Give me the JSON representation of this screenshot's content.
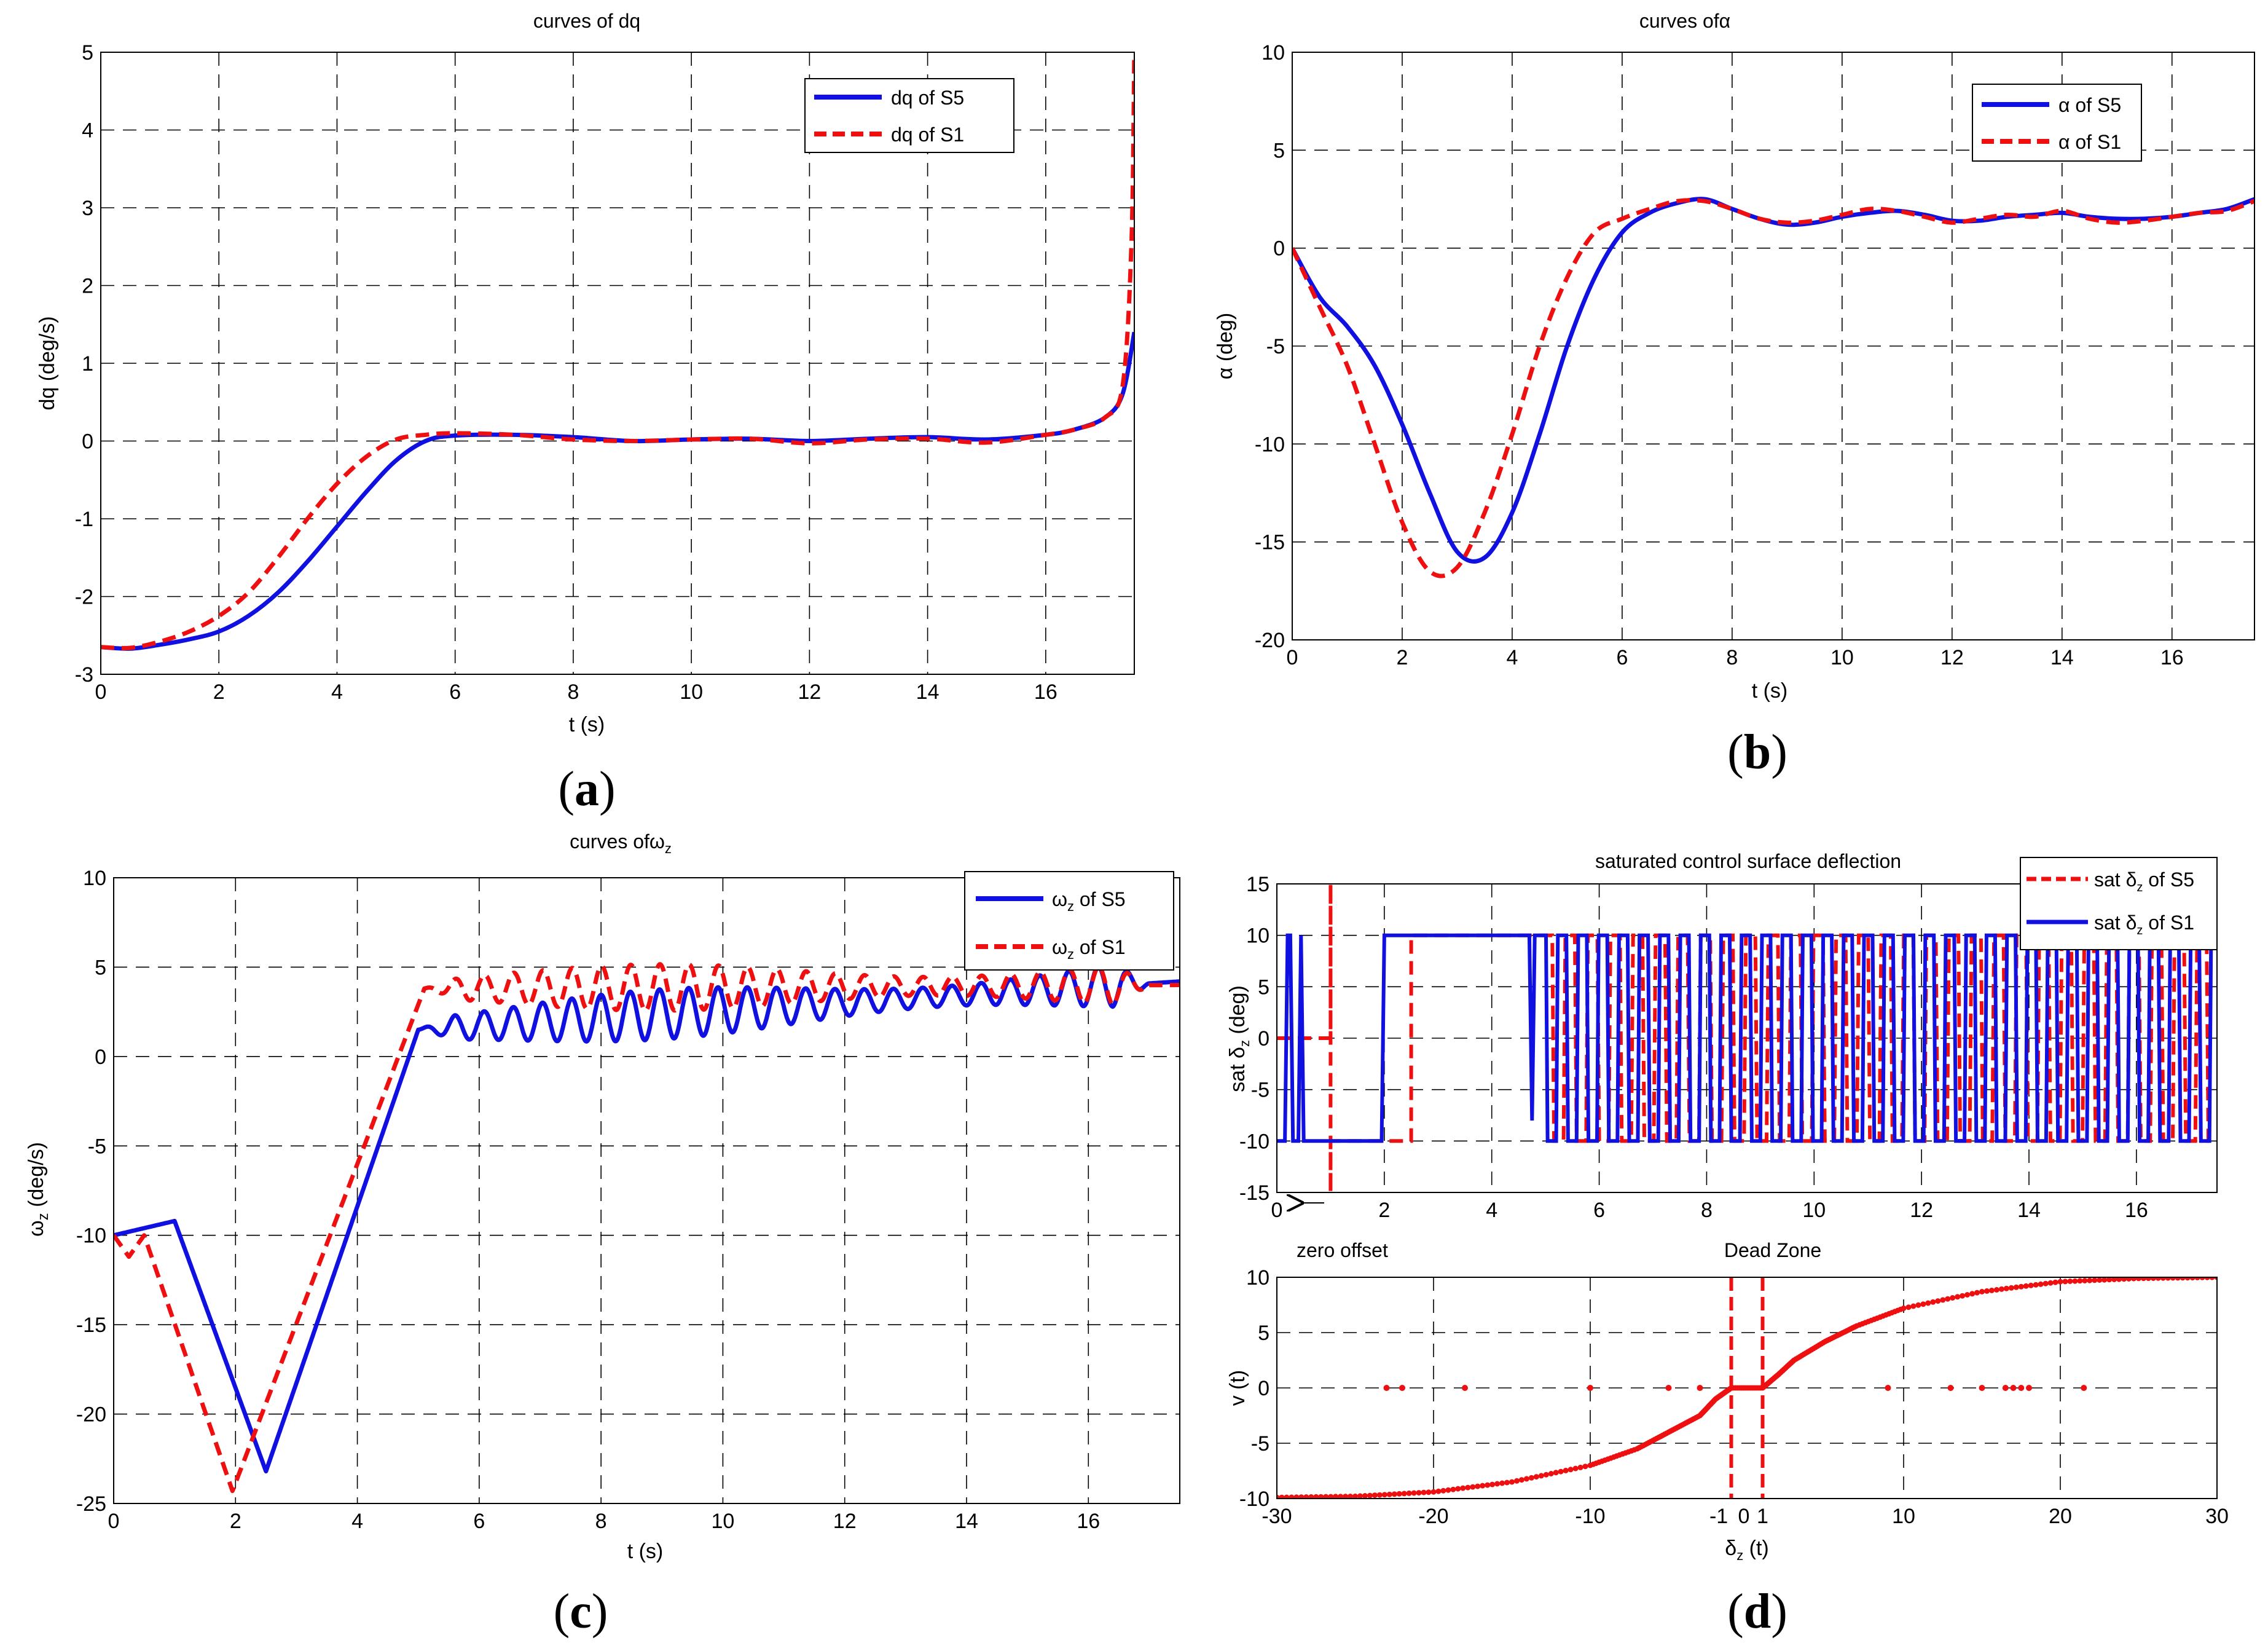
{
  "colors": {
    "s5": "#1010e0",
    "s1": "#ee1010",
    "grid": "#000000"
  },
  "chart_data": [
    {
      "id": "a",
      "type": "line",
      "panel_label": "a",
      "title": "curves of dq",
      "xlabel": "t (s)",
      "ylabel": "dq (deg/s)",
      "xlim": [
        0,
        17.5
      ],
      "ylim": [
        -3,
        5
      ],
      "xticks": [
        0,
        2,
        4,
        6,
        8,
        10,
        12,
        14,
        16
      ],
      "yticks": [
        -3,
        -2,
        -1,
        0,
        1,
        2,
        3,
        4,
        5
      ],
      "legend": {
        "position": "top-right",
        "entries": [
          "dq of S5",
          "dq of S1"
        ]
      },
      "series": [
        {
          "name": "dq of S5",
          "style": "solid",
          "color": "#1010e0",
          "x": [
            0,
            0.5,
            1,
            1.5,
            2,
            2.5,
            3,
            3.5,
            4,
            4.5,
            5,
            5.5,
            6,
            7,
            8,
            9,
            10,
            11,
            12,
            13,
            14,
            15,
            16,
            16.5,
            17,
            17.3,
            17.5
          ],
          "y": [
            -2.65,
            -2.67,
            -2.62,
            -2.55,
            -2.45,
            -2.25,
            -1.95,
            -1.55,
            -1.1,
            -0.65,
            -0.25,
            0.0,
            0.07,
            0.08,
            0.05,
            0.0,
            0.02,
            0.03,
            0.0,
            0.03,
            0.05,
            0.02,
            0.08,
            0.15,
            0.3,
            0.6,
            1.4
          ]
        },
        {
          "name": "dq of S1",
          "style": "dashed",
          "color": "#ee1010",
          "x": [
            0,
            0.5,
            1,
            1.5,
            2,
            2.5,
            3,
            3.5,
            4,
            4.5,
            5,
            5.5,
            6,
            7,
            8,
            9,
            10,
            11,
            12,
            13,
            14,
            15,
            16,
            16.5,
            17,
            17.3,
            17.45,
            17.5
          ],
          "y": [
            -2.65,
            -2.66,
            -2.58,
            -2.45,
            -2.25,
            -1.95,
            -1.5,
            -1.0,
            -0.55,
            -0.2,
            0.02,
            0.08,
            0.1,
            0.08,
            0.02,
            0.0,
            0.02,
            0.03,
            -0.03,
            0.02,
            0.03,
            -0.02,
            0.08,
            0.15,
            0.3,
            0.7,
            2.5,
            5.0
          ]
        }
      ]
    },
    {
      "id": "b",
      "type": "line",
      "panel_label": "b",
      "title": "curves ofα",
      "xlabel": "t (s)",
      "ylabel": "α (deg)",
      "xlim": [
        0,
        17.5
      ],
      "ylim": [
        -20,
        10
      ],
      "xticks": [
        0,
        2,
        4,
        6,
        8,
        10,
        12,
        14,
        16
      ],
      "yticks": [
        -20,
        -15,
        -10,
        -5,
        0,
        5,
        10
      ],
      "legend": {
        "position": "top-right",
        "entries": [
          "α of S5",
          "α of S1"
        ]
      },
      "series": [
        {
          "name": "α of S5",
          "style": "solid",
          "color": "#1010e0",
          "x": [
            0,
            0.5,
            1,
            1.5,
            2,
            2.5,
            3,
            3.5,
            4,
            4.5,
            5,
            5.5,
            6,
            6.5,
            7,
            7.5,
            8,
            8.5,
            9,
            9.5,
            10,
            10.5,
            11,
            11.5,
            12,
            12.5,
            13,
            13.5,
            14,
            14.5,
            15,
            15.5,
            16,
            16.5,
            17,
            17.5
          ],
          "y": [
            0,
            -2.5,
            -4.0,
            -6.0,
            -9.0,
            -12.5,
            -15.5,
            -15.8,
            -13.5,
            -9.5,
            -5.0,
            -1.5,
            0.8,
            1.8,
            2.3,
            2.5,
            2.0,
            1.5,
            1.2,
            1.3,
            1.6,
            1.8,
            1.9,
            1.7,
            1.4,
            1.4,
            1.6,
            1.7,
            1.8,
            1.6,
            1.5,
            1.5,
            1.6,
            1.8,
            2.0,
            2.5
          ]
        },
        {
          "name": "α of S1",
          "style": "dashed",
          "color": "#ee1010",
          "x": [
            0,
            0.5,
            1,
            1.5,
            2,
            2.5,
            3,
            3.5,
            4,
            4.5,
            5,
            5.5,
            6,
            6.5,
            7,
            7.5,
            8,
            8.5,
            9,
            9.5,
            10,
            10.5,
            11,
            11.5,
            12,
            12.5,
            13,
            13.5,
            14,
            14.5,
            15,
            15.5,
            16,
            16.5,
            17,
            17.5
          ],
          "y": [
            0,
            -3.0,
            -6.0,
            -10.0,
            -14.0,
            -16.5,
            -16.3,
            -13.5,
            -9.5,
            -5.0,
            -1.5,
            0.8,
            1.5,
            2.0,
            2.4,
            2.4,
            2.0,
            1.5,
            1.3,
            1.4,
            1.7,
            2.0,
            1.9,
            1.6,
            1.3,
            1.5,
            1.7,
            1.6,
            1.9,
            1.5,
            1.3,
            1.4,
            1.6,
            1.8,
            1.9,
            2.4
          ]
        }
      ]
    },
    {
      "id": "c",
      "type": "line",
      "panel_label": "c",
      "title": "curves of",
      "title_sym": "ω",
      "title_sub": "z",
      "xlabel": "t (s)",
      "ylabel_sym": "ω",
      "ylabel_sub": "z",
      "ylabel_unit": " (deg/s)",
      "xlim": [
        0,
        17.5
      ],
      "ylim": [
        -25,
        10
      ],
      "xticks": [
        0,
        2,
        4,
        6,
        8,
        10,
        12,
        14,
        16
      ],
      "yticks": [
        -25,
        -20,
        -15,
        -10,
        -5,
        0,
        5,
        10
      ],
      "legend": {
        "position": "top-right",
        "entries_sym": [
          "ω",
          "ω"
        ],
        "entries_sub": [
          "z",
          "z"
        ],
        "entries_suffix": [
          " of S5",
          " of S1"
        ]
      },
      "series": [
        {
          "name": "ωz of S5",
          "style": "solid",
          "color": "#1010e0",
          "x": [
            0,
            1.0,
            2.5,
            5.0,
            17.5
          ],
          "y": [
            -10.0,
            -9.2,
            -23.2,
            1.5,
            4.2
          ],
          "osc": {
            "start": 5.0,
            "end": 17.0,
            "period": 0.48,
            "amp": 1.4
          }
        },
        {
          "name": "ωz of S1",
          "style": "dashed",
          "color": "#ee1010",
          "x": [
            0,
            0.25,
            0.5,
            1.95,
            5.1,
            17.5
          ],
          "y": [
            -10.0,
            -11.2,
            -10.0,
            -24.3,
            3.8,
            4.0
          ],
          "osc": {
            "start": 5.1,
            "end": 17.0,
            "period": 0.48,
            "amp": 1.3
          }
        }
      ]
    },
    {
      "id": "d1",
      "type": "line",
      "panel_label": "d",
      "title": "saturated control surface deflection",
      "xlabel": "",
      "ylabel_pre": "sat ",
      "ylabel_sym": "δ",
      "ylabel_sub": "z",
      "ylabel_unit": " (deg)",
      "xlim": [
        0,
        17.5
      ],
      "ylim": [
        -15,
        15
      ],
      "xticks": [
        0,
        2,
        4,
        6,
        8,
        10,
        12,
        14,
        16
      ],
      "yticks": [
        -15,
        -10,
        -5,
        0,
        5,
        10,
        15
      ],
      "legend": {
        "position": "top-right",
        "entries_pre": [
          "sat ",
          "sat "
        ],
        "entries_sym": [
          "δ",
          "δ"
        ],
        "entries_sub": [
          "z",
          "z"
        ],
        "entries_suffix": [
          " of S5",
          " of S1"
        ]
      },
      "series": [
        {
          "name": "sat δz of S5",
          "style": "dashed",
          "color": "#ee1010",
          "x": [
            0,
            1.0,
            1.0,
            1.0,
            1.0,
            2.5,
            2.5,
            4.95
          ],
          "y": [
            0,
            0,
            15,
            -15,
            -10,
            -10,
            10,
            10
          ],
          "switching": {
            "start": 4.95,
            "end": 17.5,
            "period": 0.42,
            "high": 10,
            "low": -10
          }
        },
        {
          "name": "sat δz of S1",
          "style": "solid",
          "color": "#1010e0",
          "x": [
            0,
            0.15,
            0.2,
            0.25,
            0.3,
            0.4,
            0.45,
            0.5,
            1.95,
            2.0,
            4.7,
            4.75,
            4.8,
            4.85
          ],
          "y": [
            -10,
            -10,
            10,
            10,
            -10,
            -10,
            10,
            -10,
            -10,
            10,
            10,
            -8,
            10,
            10
          ],
          "switching": {
            "start": 4.85,
            "end": 17.5,
            "period": 0.38,
            "high": 10,
            "low": -10
          }
        }
      ],
      "annotation": "arrow pointing left near t = 0.6 at -15"
    },
    {
      "id": "d2",
      "type": "scatter",
      "panel_label": "d",
      "title": "Dead Zone",
      "title_left": "zero offset",
      "xlabel_sym": "δ",
      "xlabel_sub": "z",
      "xlabel_unit": " (t)",
      "ylabel": "v (t)",
      "xlim": [
        -30,
        30
      ],
      "ylim": [
        -10,
        10
      ],
      "xticks": [
        -30,
        -20,
        -10,
        10,
        20,
        30
      ],
      "xtick_labels": [
        "-30",
        "-20",
        "-10",
        "10",
        "20",
        "30"
      ],
      "extra_ticks": [
        "-1",
        "0",
        "1"
      ],
      "yticks": [
        -10,
        -5,
        0,
        5,
        10
      ],
      "dead_zone": [
        -1.0,
        1.0
      ],
      "zero_offset_points_x": [
        -23,
        -22,
        -18,
        -10,
        -5,
        -3,
        9,
        13,
        15,
        16.5,
        17,
        17.5,
        18,
        21.5
      ],
      "series": [
        {
          "name": "v(t)",
          "style": "dotted",
          "color": "#ee1010",
          "x": [
            -30,
            -25,
            -20,
            -15,
            -10,
            -7,
            -5,
            -3,
            -2,
            -1,
            1,
            2,
            3,
            5,
            7,
            10,
            15,
            20,
            25,
            30
          ],
          "y": [
            -9.9,
            -9.8,
            -9.4,
            -8.5,
            -7.0,
            -5.5,
            -4.0,
            -2.5,
            -1.0,
            0,
            0,
            1.2,
            2.5,
            4.2,
            5.6,
            7.2,
            8.7,
            9.6,
            9.9,
            10.0
          ]
        }
      ]
    }
  ]
}
